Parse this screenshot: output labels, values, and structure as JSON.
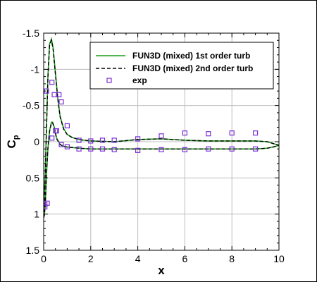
{
  "chart_data": {
    "type": "line",
    "xlabel": "x",
    "ylabel": "C",
    "ylabel_sub": "p",
    "xlim": [
      0,
      10
    ],
    "ylim": [
      -1.5,
      1.5
    ],
    "y_inverted": true,
    "grid": true,
    "legend_position": "top-right",
    "x_ticks": [
      0,
      2,
      4,
      6,
      8,
      10
    ],
    "x_tick_labels": [
      "0",
      "2",
      "4",
      "6",
      "8",
      "10"
    ],
    "y_ticks": [
      -1.5,
      -1,
      -0.5,
      0,
      0.5,
      1,
      1.5
    ],
    "y_tick_labels": [
      "-1.5",
      "-1",
      "-0.5",
      "0",
      "0.5",
      "1",
      "1.5"
    ],
    "series": [
      {
        "name": "FUN3D (mixed) 1st order turb",
        "style": "solid",
        "color": "#1a9e1a",
        "segments": [
          {
            "x": [
              0.0,
              0.03,
              0.07,
              0.12,
              0.18,
              0.25,
              0.33,
              0.4,
              0.5,
              0.6,
              0.7,
              0.85,
              1.0,
              1.2,
              1.5,
              2.0,
              3.0,
              4.0,
              5.0,
              6.0,
              7.0,
              8.0,
              9.0,
              9.5,
              9.8,
              10.0
            ],
            "y": [
              1.05,
              0.75,
              0.4,
              -0.2,
              -0.9,
              -1.35,
              -1.42,
              -1.3,
              -0.95,
              -0.6,
              -0.35,
              -0.18,
              -0.1,
              -0.06,
              -0.03,
              -0.01,
              0.0,
              -0.03,
              -0.04,
              -0.02,
              -0.01,
              -0.01,
              -0.01,
              0.0,
              0.03,
              0.05
            ]
          },
          {
            "x": [
              0.0,
              0.03,
              0.07,
              0.12,
              0.18,
              0.25,
              0.33,
              0.38,
              0.45,
              0.55,
              0.7,
              0.9,
              1.2,
              1.5,
              2.0,
              3.0,
              4.0,
              5.0,
              6.0,
              7.0,
              8.0,
              9.0,
              9.5,
              9.8,
              10.0
            ],
            "y": [
              1.05,
              1.02,
              0.85,
              0.45,
              0.1,
              -0.15,
              -0.27,
              -0.27,
              -0.2,
              -0.05,
              0.04,
              0.07,
              0.08,
              0.09,
              0.1,
              0.1,
              0.1,
              0.1,
              0.1,
              0.1,
              0.1,
              0.1,
              0.09,
              0.07,
              0.05
            ]
          }
        ]
      },
      {
        "name": "FUN3D (mixed) 2nd order turb",
        "style": "dashed",
        "color": "#000000",
        "segments": [
          {
            "x": [
              0.0,
              0.03,
              0.07,
              0.12,
              0.18,
              0.25,
              0.33,
              0.4,
              0.5,
              0.6,
              0.7,
              0.85,
              1.0,
              1.2,
              1.5,
              2.0,
              3.0,
              4.0,
              5.0,
              6.0,
              7.0,
              8.0,
              9.0,
              9.5,
              9.8,
              10.0
            ],
            "y": [
              1.05,
              0.76,
              0.42,
              -0.18,
              -0.88,
              -1.33,
              -1.4,
              -1.28,
              -0.93,
              -0.59,
              -0.34,
              -0.17,
              -0.1,
              -0.06,
              -0.03,
              -0.01,
              0.0,
              -0.03,
              -0.04,
              -0.02,
              -0.01,
              -0.01,
              -0.01,
              0.0,
              0.03,
              0.05
            ]
          },
          {
            "x": [
              0.0,
              0.03,
              0.07,
              0.12,
              0.18,
              0.25,
              0.33,
              0.38,
              0.45,
              0.55,
              0.7,
              0.9,
              1.2,
              1.5,
              2.0,
              3.0,
              4.0,
              5.0,
              6.0,
              7.0,
              8.0,
              9.0,
              9.5,
              9.8,
              10.0
            ],
            "y": [
              1.05,
              1.01,
              0.84,
              0.44,
              0.09,
              -0.14,
              -0.26,
              -0.26,
              -0.19,
              -0.04,
              0.04,
              0.07,
              0.08,
              0.09,
              0.1,
              0.1,
              0.1,
              0.1,
              0.1,
              0.1,
              0.1,
              0.1,
              0.09,
              0.07,
              0.05
            ]
          }
        ]
      },
      {
        "name": "exp",
        "style": "markers",
        "color": "#7b2fd6",
        "x": [
          0.05,
          0.15,
          0.35,
          0.45,
          0.55,
          0.65,
          0.75,
          1.0,
          1.5,
          2.0,
          2.5,
          3.0,
          4.0,
          5.0,
          6.0,
          7.0,
          8.0,
          9.0,
          0.05,
          0.12,
          0.35,
          0.5,
          0.75,
          1.0,
          1.5,
          2.0,
          2.5,
          3.0,
          4.0,
          5.0,
          6.0,
          7.0,
          8.0,
          9.0
        ],
        "y": [
          0.9,
          0.85,
          -0.82,
          -0.65,
          -0.15,
          -0.65,
          -0.55,
          -0.22,
          -0.02,
          -0.01,
          -0.02,
          -0.02,
          -0.04,
          -0.08,
          -0.12,
          -0.11,
          -0.12,
          -0.12,
          0.87,
          -0.7,
          -0.05,
          -0.15,
          0.04,
          0.07,
          0.1,
          0.1,
          0.1,
          0.11,
          0.12,
          0.11,
          0.11,
          0.1,
          0.1,
          0.1
        ]
      }
    ]
  }
}
